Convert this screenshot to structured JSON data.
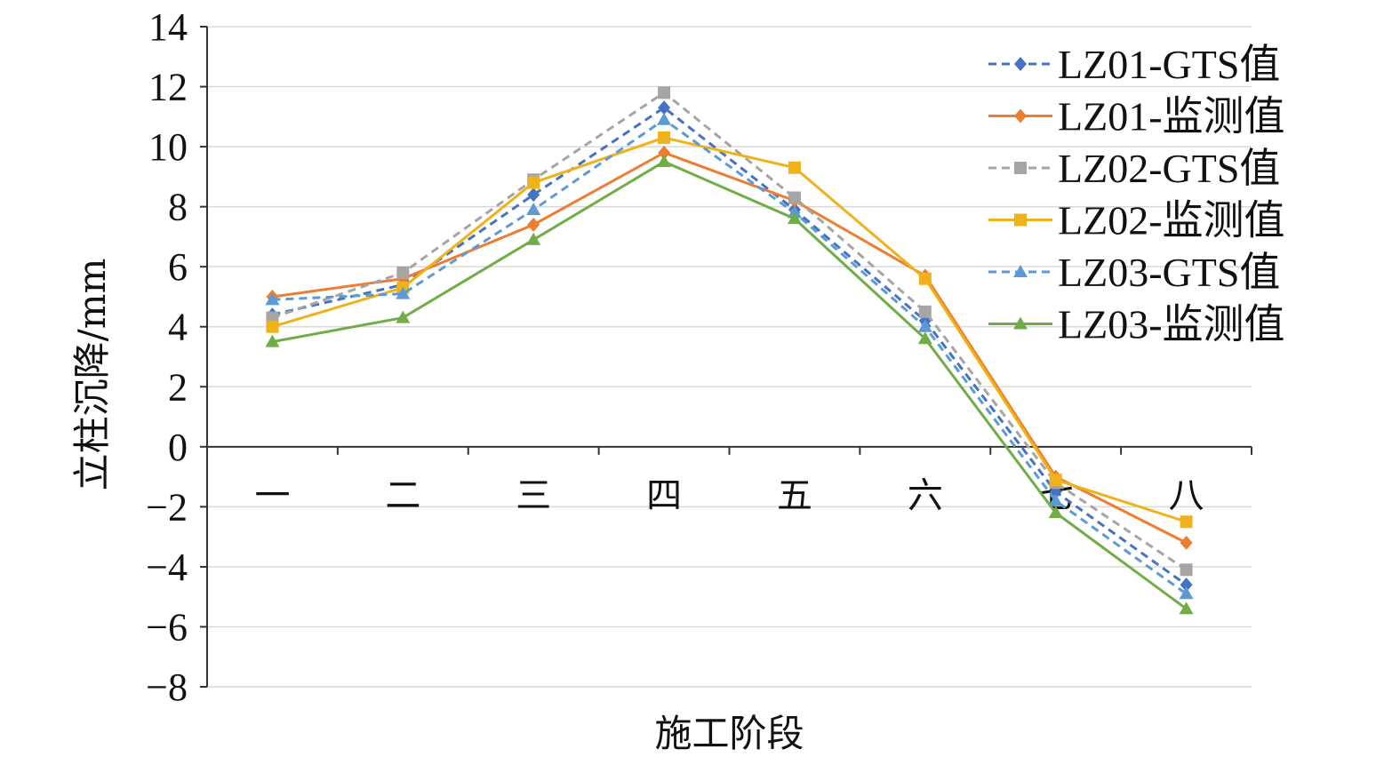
{
  "chart_data": {
    "type": "line",
    "title": "",
    "xlabel": "施工阶段",
    "ylabel": "立柱沉降/mm",
    "categories": [
      "一",
      "二",
      "三",
      "四",
      "五",
      "六",
      "七",
      "八"
    ],
    "ylim": [
      -8,
      14
    ],
    "yticks": [
      "−8",
      "−6",
      "−4",
      "−2",
      "0",
      "2",
      "4",
      "6",
      "8",
      "10",
      "12",
      "14"
    ],
    "grid": "horizontal",
    "legend_position": "top-right",
    "series": [
      {
        "name": "LZ01-GTS值",
        "values": [
          4.4,
          5.4,
          8.4,
          11.3,
          7.9,
          4.2,
          -1.5,
          -4.6
        ],
        "color": "#4472c4",
        "dash": "dashed",
        "marker": "diamond"
      },
      {
        "name": "LZ01-监测值",
        "values": [
          5.0,
          5.6,
          7.4,
          9.8,
          8.2,
          5.7,
          -1.0,
          -3.2
        ],
        "color": "#ed7d31",
        "dash": "solid",
        "marker": "diamond"
      },
      {
        "name": "LZ02-GTS值",
        "values": [
          4.3,
          5.8,
          8.9,
          11.8,
          8.3,
          4.5,
          -1.2,
          -4.1
        ],
        "color": "#a5a5a5",
        "dash": "dashed",
        "marker": "square"
      },
      {
        "name": "LZ02-监测值",
        "values": [
          4.0,
          5.3,
          8.8,
          10.3,
          9.3,
          5.6,
          -1.1,
          -2.5
        ],
        "color": "#f0b21a",
        "dash": "solid",
        "marker": "square"
      },
      {
        "name": "LZ03-GTS值",
        "values": [
          4.9,
          5.1,
          7.9,
          10.9,
          7.8,
          4.0,
          -1.8,
          -4.9
        ],
        "color": "#5b9bd5",
        "dash": "dashed",
        "marker": "triangle"
      },
      {
        "name": "LZ03-监测值",
        "values": [
          3.5,
          4.3,
          6.9,
          9.5,
          7.6,
          3.6,
          -2.2,
          -5.4
        ],
        "color": "#70ad47",
        "dash": "solid",
        "marker": "triangle"
      }
    ]
  }
}
